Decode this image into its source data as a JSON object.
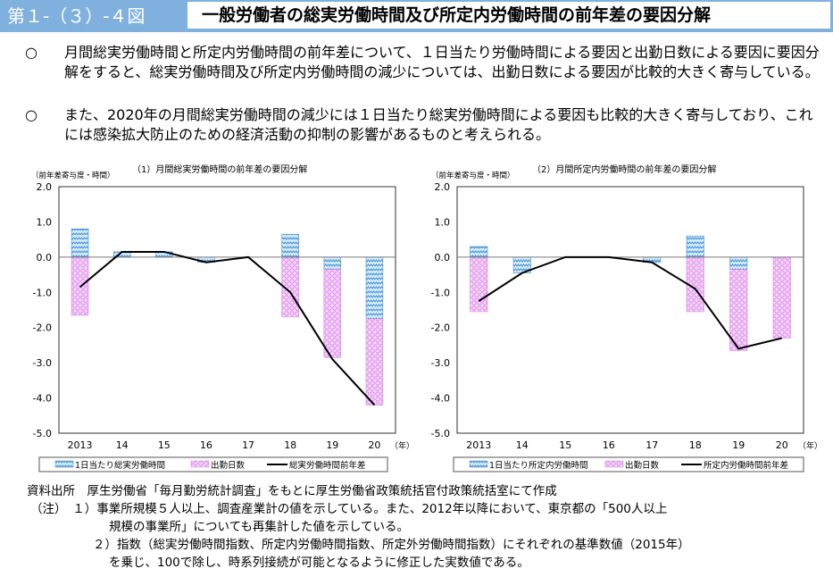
{
  "header": {
    "figure_number": "第１-（３）-４図",
    "title": "一般労働者の総実労働時間及び所定内労働時間の前年差の要因分解"
  },
  "body": [
    {
      "marker": "○",
      "text": "月間総実労働時間と所定内労働時間の前年差について、１日当たり労働時間による要因と出勤日数による要因に要因分解をすると、総実労働時間及び所定内労働時間の減少については、出勤日数による要因が比較的大きく寄与している。"
    },
    {
      "marker": "○",
      "text": "また、2020年の月間総実労働時間の減少には１日当たり総実労働時間による要因も比較的大きく寄与しており、これには感染拡大防止のための経済活動の抑制の影響があるものと考えられる。"
    }
  ],
  "notes": {
    "source_label": "資料出所",
    "source": "厚生労働省「毎月勤労統計調査」をもとに厚生労働省政策統括官付政策統括室にて作成",
    "note_label": "（注）",
    "note1a": "１）事業所規模５人以上、調査産業計の値を示している。また、2012年以降において、東京都の「500人以上",
    "note1b": "規模の事業所」についても再集計した値を示している。",
    "note2a": "２）指数（総実労働時間指数、所定内労働時間指数、所定外労働時間指数）にそれぞれの基準数値（2015年）",
    "note2b": "を乗じ、100で除し、時系列接続が可能となるように修正した実数値である。"
  },
  "colors": {
    "header": "#7fb0de",
    "blue_bar": "#5aa0dc",
    "pink_bar": "#e48ef0",
    "line": "#000000"
  },
  "chart_data": [
    {
      "type": "bar",
      "title": "（1）月間総実労働時間の前年差の要因分解",
      "ylabel": "（前年差寄与度・時間）",
      "xunit": "（年）",
      "categories": [
        "2013",
        "14",
        "15",
        "16",
        "17",
        "18",
        "19",
        "20"
      ],
      "ylim": [
        -5,
        2
      ],
      "yticks": [
        "2.0",
        "1.0",
        "0.0",
        "-1.0",
        "-2.0",
        "-3.0",
        "-4.0",
        "-5.0"
      ],
      "stacked": true,
      "legend": "bottom",
      "series": [
        {
          "name": "1日当たり総実労働時間",
          "kind": "bar",
          "values": [
            0.8,
            0.15,
            0.15,
            -0.15,
            0,
            0.65,
            -0.35,
            -1.75
          ]
        },
        {
          "name": "出勤日数",
          "kind": "bar",
          "values": [
            -1.65,
            0,
            0,
            0,
            0,
            -1.7,
            -2.5,
            -2.45
          ]
        },
        {
          "name": "総実労働時間前年差",
          "kind": "line",
          "values": [
            -0.85,
            0.15,
            0.15,
            -0.15,
            0,
            -1.0,
            -2.9,
            -4.2
          ]
        }
      ]
    },
    {
      "type": "bar",
      "title": "（2）月間所定内労働時間の前年差の要因分解",
      "ylabel": "（前年差寄与度・時間）",
      "xunit": "（年）",
      "categories": [
        "2013",
        "14",
        "15",
        "16",
        "17",
        "18",
        "19",
        "20"
      ],
      "ylim": [
        -5,
        2
      ],
      "yticks": [
        "2.0",
        "1.0",
        "0.0",
        "-1.0",
        "-2.0",
        "-3.0",
        "-4.0",
        "-5.0"
      ],
      "stacked": true,
      "legend": "bottom",
      "series": [
        {
          "name": "1日当たり所定内労働時間",
          "kind": "bar",
          "values": [
            0.3,
            -0.45,
            0,
            0,
            -0.15,
            0.6,
            -0.35,
            0
          ]
        },
        {
          "name": "出勤日数",
          "kind": "bar",
          "values": [
            -1.55,
            0,
            0,
            0,
            0,
            -1.55,
            -2.3,
            -2.3
          ]
        },
        {
          "name": "所定内労働時間前年差",
          "kind": "line",
          "values": [
            -1.25,
            -0.45,
            0,
            0,
            -0.15,
            -0.9,
            -2.6,
            -2.3
          ]
        }
      ]
    }
  ]
}
